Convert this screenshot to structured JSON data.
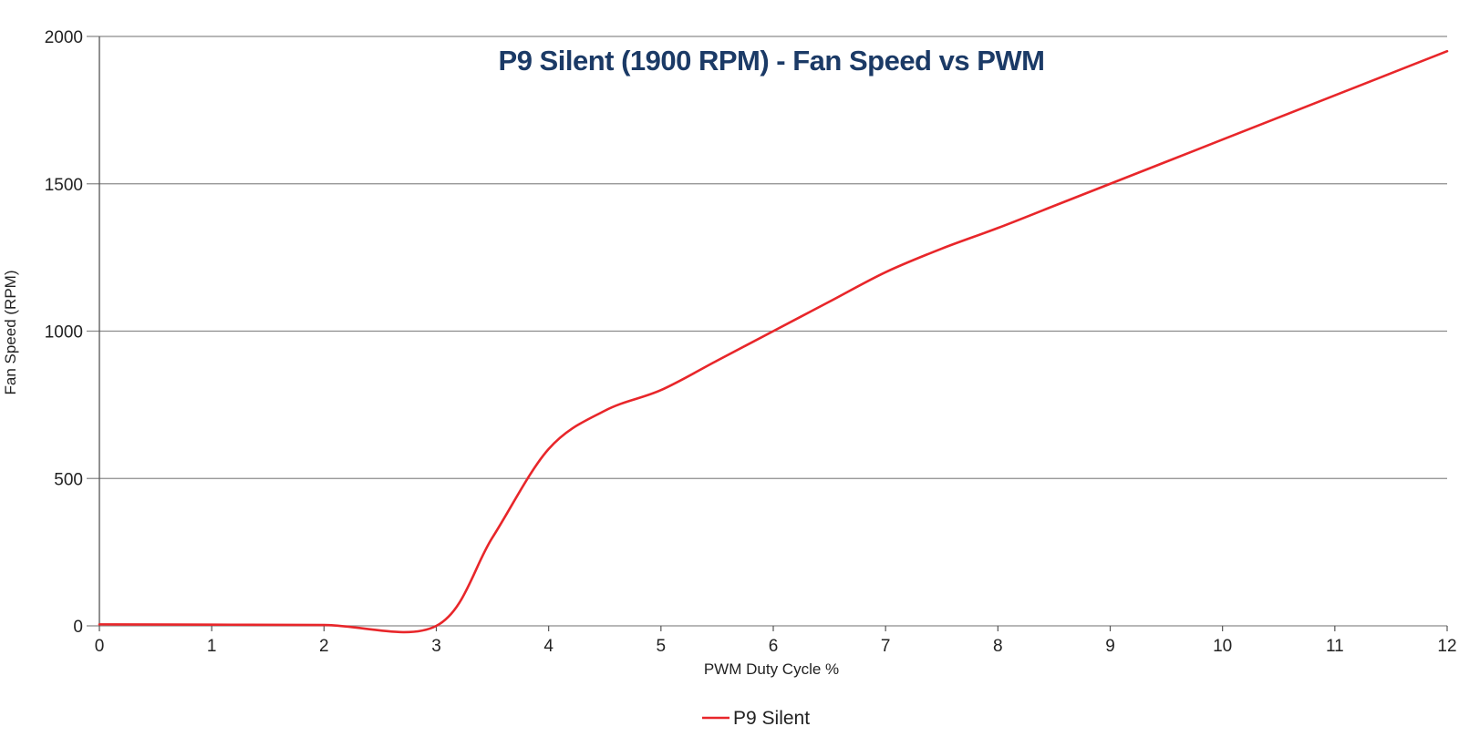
{
  "chart_data": {
    "type": "line",
    "title": "P9 Silent (1900 RPM) - Fan Speed vs PWM",
    "xlabel": "PWM Duty Cycle %",
    "ylabel": "Fan Speed (RPM)",
    "xlim": [
      0,
      12
    ],
    "ylim": [
      0,
      2000
    ],
    "x_ticks": [
      "0",
      "1",
      "2",
      "3",
      "4",
      "5",
      "6",
      "7",
      "8",
      "9",
      "10",
      "11",
      "12"
    ],
    "y_ticks": [
      "0",
      "500",
      "1000",
      "1500",
      "2000"
    ],
    "grid": "horizontal",
    "legend_position": "bottom-center",
    "series": [
      {
        "name": "P9 Silent",
        "color": "#e8262a",
        "x": [
          0,
          1,
          2,
          3,
          3.5,
          4,
          4.5,
          5,
          5.5,
          6,
          6.5,
          7,
          7.5,
          8,
          8.5,
          9,
          9.5,
          10,
          10.5,
          11,
          11.5,
          12
        ],
        "y": [
          5,
          4,
          3,
          0,
          300,
          600,
          730,
          800,
          900,
          1000,
          1100,
          1200,
          1280,
          1350,
          1425,
          1500,
          1575,
          1650,
          1725,
          1800,
          1875,
          1950
        ]
      }
    ],
    "colors": {
      "gridline": "#8c8c8c",
      "title": "#1b3a66",
      "axis": "#555555"
    }
  }
}
